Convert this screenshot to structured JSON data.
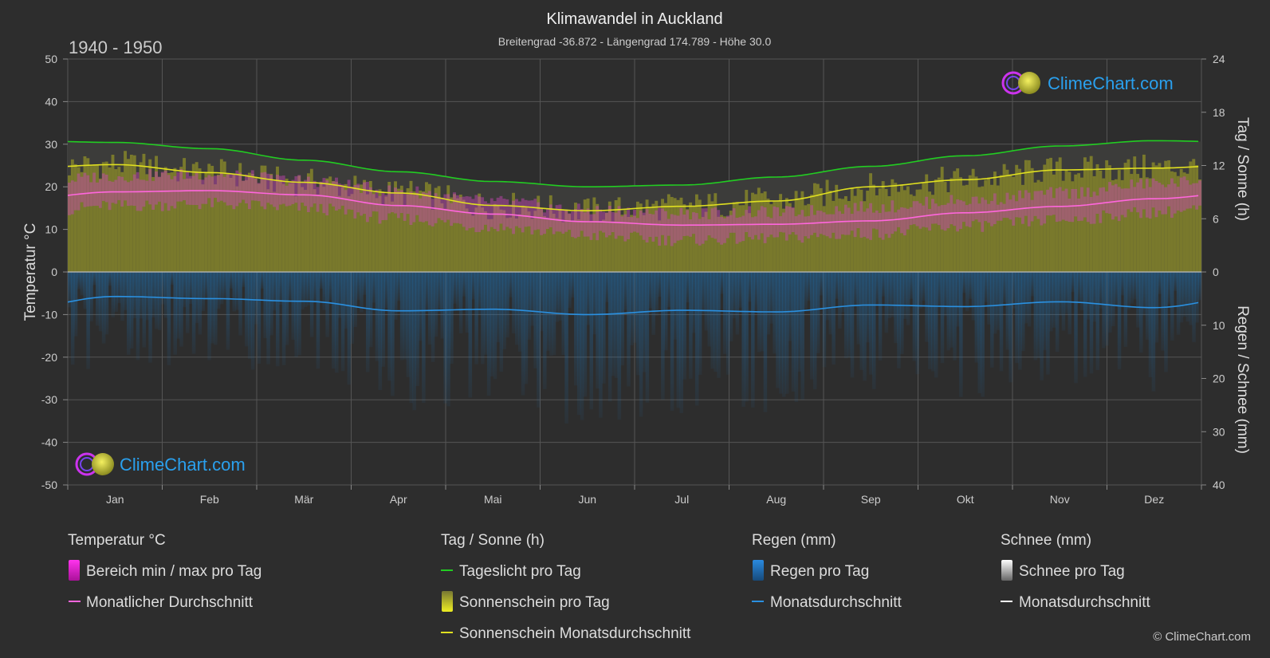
{
  "header": {
    "title": "Klimawandel in Auckland",
    "subtitle": "Breitengrad -36.872 - Längengrad 174.789 - Höhe 30.0",
    "period": "1940 - 1950"
  },
  "branding": {
    "logo_text": "ClimeChart.com",
    "copyright": "© ClimeChart.com"
  },
  "chart_data": {
    "type": "area",
    "categories": [
      "Jan",
      "Feb",
      "Mär",
      "Apr",
      "Mai",
      "Jun",
      "Jul",
      "Aug",
      "Sep",
      "Okt",
      "Nov",
      "Dez"
    ],
    "axes": {
      "left": {
        "label": "Temperatur °C",
        "min": -50,
        "max": 50,
        "ticks": [
          50,
          40,
          30,
          20,
          10,
          0,
          -10,
          -20,
          -30,
          -40,
          -50
        ]
      },
      "right_top": {
        "label": "Tag / Sonne (h)",
        "min": 0,
        "max": 24,
        "ticks": [
          24,
          18,
          12,
          6,
          0
        ]
      },
      "right_bottom": {
        "label": "Regen / Schnee (mm)",
        "min": 0,
        "max": 40,
        "ticks": [
          10,
          20,
          30,
          40
        ]
      }
    },
    "grid": true,
    "series": [
      {
        "name": "Tageslicht pro Tag",
        "unit": "h",
        "color": "#22cc22",
        "values": [
          14.6,
          13.9,
          12.6,
          11.3,
          10.2,
          9.6,
          9.8,
          10.7,
          11.9,
          13.1,
          14.2,
          14.8
        ]
      },
      {
        "name": "Sonnenschein Monatsdurchschnitt",
        "unit": "h",
        "color": "#e0e020",
        "values": [
          12.1,
          11.2,
          10.1,
          8.9,
          7.5,
          6.9,
          7.4,
          8.0,
          9.6,
          10.4,
          11.5,
          11.7
        ]
      },
      {
        "name": "Monatlicher Durchschnitt",
        "unit": "°C",
        "color": "#ff66dd",
        "values": [
          18.8,
          19.1,
          18.1,
          15.6,
          13.6,
          11.8,
          11.0,
          11.2,
          12.0,
          13.9,
          15.4,
          17.2
        ]
      },
      {
        "name": "Bereich min / max pro Tag",
        "unit": "°C",
        "min": [
          15.5,
          16.0,
          15.0,
          12.5,
          10.5,
          8.5,
          7.5,
          8.0,
          9.0,
          10.8,
          12.2,
          14.0
        ],
        "max": [
          22.5,
          23.0,
          21.5,
          19.0,
          16.5,
          14.5,
          13.8,
          14.0,
          15.2,
          16.8,
          18.5,
          20.8
        ]
      },
      {
        "name": "Regen Monatsdurchschnitt",
        "unit": "mm",
        "color": "#2a90e0",
        "values": [
          4.6,
          5.0,
          5.5,
          7.3,
          7.0,
          8.0,
          7.2,
          7.5,
          6.2,
          6.5,
          5.6,
          6.7
        ]
      }
    ]
  },
  "legend": {
    "groups": [
      {
        "title": "Temperatur °C",
        "items": [
          "Bereich min / max pro Tag",
          "Monatlicher Durchschnitt"
        ]
      },
      {
        "title": "Tag / Sonne (h)",
        "items": [
          "Tageslicht pro Tag",
          "Sonnenschein pro Tag",
          "Sonnenschein Monatsdurchschnitt"
        ]
      },
      {
        "title": "Regen (mm)",
        "items": [
          "Regen pro Tag",
          "Monatsdurchschnitt"
        ]
      },
      {
        "title": "Schnee (mm)",
        "items": [
          "Schnee pro Tag",
          "Monatsdurchschnitt"
        ]
      }
    ]
  }
}
